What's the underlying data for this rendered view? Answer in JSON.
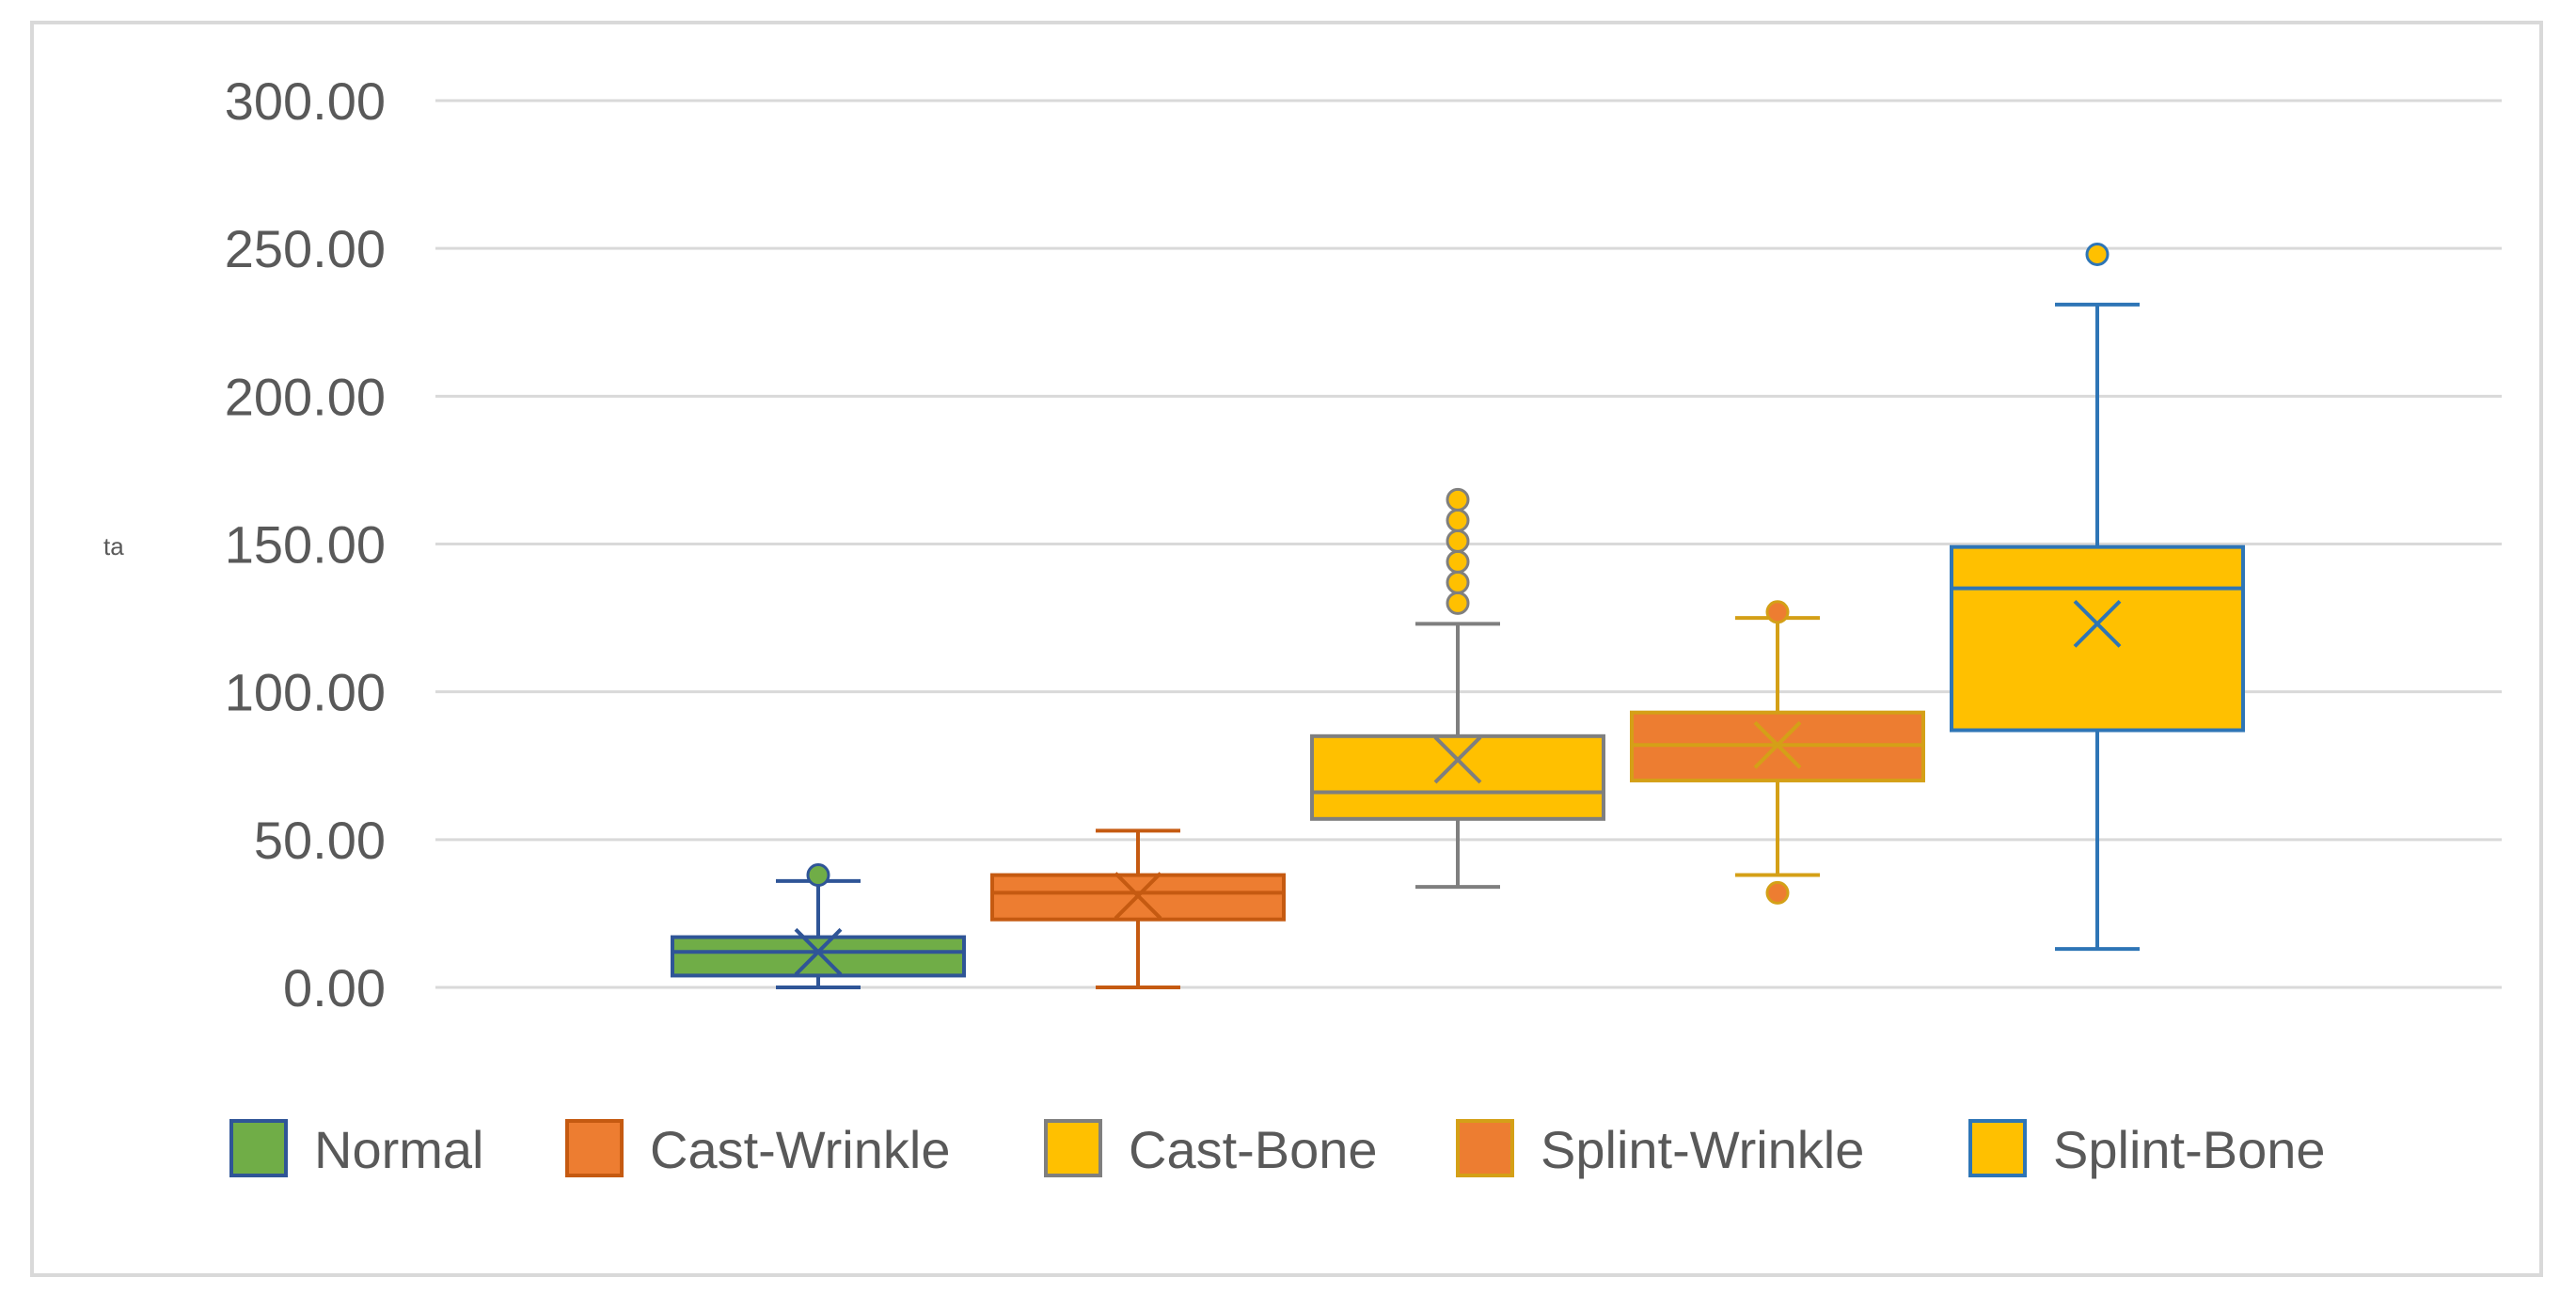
{
  "chart_data": {
    "type": "boxplot",
    "title": "",
    "xlabel": "",
    "ylabel": "ta",
    "ylim": [
      0,
      300
    ],
    "yticks": [
      "0.00",
      "50.00",
      "100.00",
      "150.00",
      "200.00",
      "250.00",
      "300.00"
    ],
    "grid": true,
    "legend_position": "bottom",
    "series": [
      {
        "name": "Normal",
        "fill": "#70ad47",
        "stroke": "#2f5597",
        "min": 0,
        "q1": 4,
        "median": 12,
        "q3": 17,
        "max": 36,
        "mean": 12,
        "outliers": [
          38
        ]
      },
      {
        "name": "Cast-Wrinkle",
        "fill": "#ed7d31",
        "stroke": "#c55a11",
        "min": 0,
        "q1": 23,
        "median": 32,
        "q3": 38,
        "max": 53,
        "mean": 31,
        "outliers": []
      },
      {
        "name": "Cast-Bone",
        "fill": "#ffc000",
        "stroke": "#7f7f7f",
        "min": 34,
        "q1": 57,
        "median": 66,
        "q3": 85,
        "max": 123,
        "mean": 77,
        "outliers": [
          130,
          137,
          144,
          151,
          158,
          165
        ]
      },
      {
        "name": "Splint-Wrinkle",
        "fill": "#ed7d31",
        "stroke": "#d4a017",
        "min": 38,
        "q1": 70,
        "median": 82,
        "q3": 93,
        "max": 125,
        "mean": 82,
        "outliers": [
          32,
          127
        ]
      },
      {
        "name": "Splint-Bone",
        "fill": "#ffc000",
        "stroke": "#2e75b6",
        "min": 13,
        "q1": 87,
        "median": 135,
        "q3": 149,
        "max": 231,
        "mean": 123,
        "outliers": [
          248
        ]
      }
    ]
  }
}
